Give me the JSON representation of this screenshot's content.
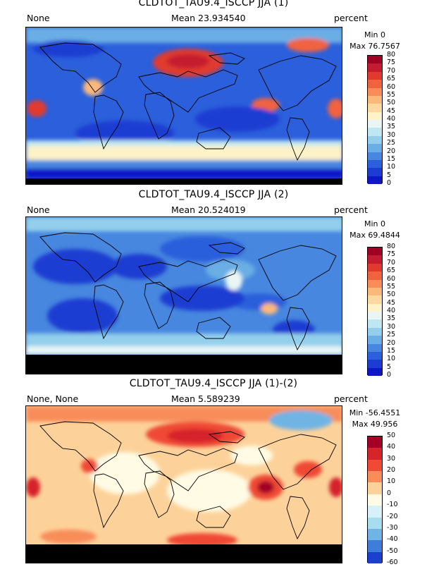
{
  "panels": [
    {
      "title": "CLDTOT_TAU9.4_ISCCP JJA (1)",
      "left_label": "None",
      "mean_label": "Mean 23.934540",
      "units": "percent",
      "min_label": "Min 0",
      "max_label": "Max 76.7567",
      "colorbar": {
        "ticks": [
          "80",
          "75",
          "70",
          "65",
          "60",
          "55",
          "50",
          "45",
          "40",
          "35",
          "30",
          "25",
          "20",
          "15",
          "10",
          "5",
          "0"
        ],
        "colors": [
          "#9e0124",
          "#c51b2e",
          "#e03a2f",
          "#f1623f",
          "#f88d57",
          "#fbb87b",
          "#fdd9a0",
          "#fdf2c8",
          "#e9f6f4",
          "#bfe7f0",
          "#93cfec",
          "#6aaee5",
          "#4787df",
          "#2b5fdb",
          "#1d3cd2",
          "#0d17c8"
        ]
      }
    },
    {
      "title": "CLDTOT_TAU9.4_ISCCP JJA (2)",
      "left_label": "None",
      "mean_label": "Mean 20.524019",
      "units": "percent",
      "min_label": "Min 0",
      "max_label": "Max 69.4844",
      "colorbar": {
        "ticks": [
          "80",
          "75",
          "70",
          "65",
          "60",
          "55",
          "50",
          "45",
          "40",
          "35",
          "30",
          "25",
          "20",
          "15",
          "10",
          "5",
          "0"
        ],
        "colors": [
          "#9e0124",
          "#c51b2e",
          "#e03a2f",
          "#f1623f",
          "#f88d57",
          "#fbb87b",
          "#fdd9a0",
          "#fdf2c8",
          "#e9f6f4",
          "#bfe7f0",
          "#93cfec",
          "#6aaee5",
          "#4787df",
          "#2b5fdb",
          "#1d3cd2",
          "#0d17c8"
        ]
      }
    },
    {
      "title": "CLDTOT_TAU9.4_ISCCP JJA (1)-(2)",
      "left_label": "None, None",
      "mean_label": "Mean 5.589239",
      "units": "percent",
      "min_label": "Min -56.4551",
      "max_label": "Max 49.956",
      "colorbar": {
        "ticks": [
          "50",
          "40",
          "30",
          "20",
          "10",
          "0",
          "-10",
          "-20",
          "-30",
          "-40",
          "-50",
          "-60"
        ],
        "colors": [
          "#a50026",
          "#d6242a",
          "#ef4a35",
          "#f88d5a",
          "#fdd29a",
          "#fffbe4",
          "#d7f1f8",
          "#a8dcef",
          "#6fb4e4",
          "#3f7ddb",
          "#1b3fd0"
        ]
      }
    }
  ]
}
